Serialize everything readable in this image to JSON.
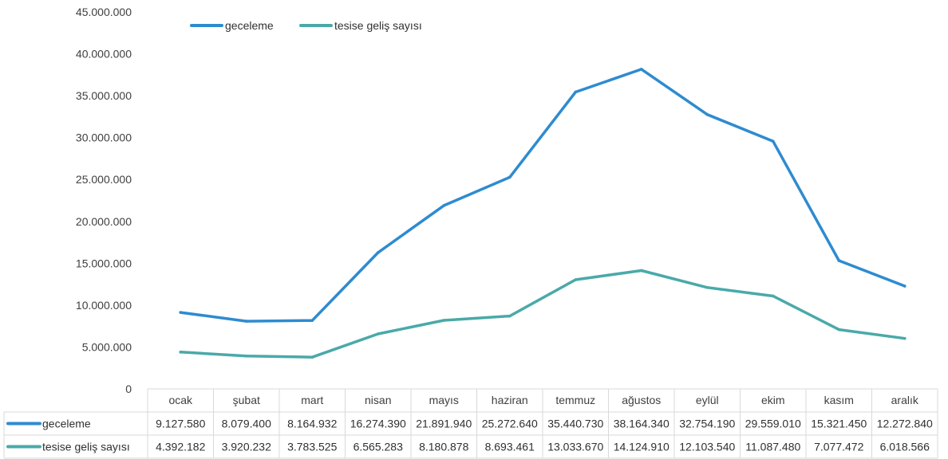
{
  "chart_data": {
    "type": "line",
    "title": "",
    "xlabel": "",
    "ylabel": "",
    "categories": [
      "ocak",
      "şubat",
      "mart",
      "nisan",
      "mayıs",
      "haziran",
      "temmuz",
      "ağustos",
      "eylül",
      "ekim",
      "kasım",
      "aralık"
    ],
    "series": [
      {
        "name": "geceleme",
        "color": "#2e8bd0",
        "values": [
          9127580,
          8079400,
          8164932,
          16274390,
          21891940,
          25272640,
          35440730,
          38164340,
          32754190,
          29559010,
          15321450,
          12272840
        ],
        "labels": [
          "9.127.580",
          "8.079.400",
          "8.164.932",
          "16.274.390",
          "21.891.940",
          "25.272.640",
          "35.440.730",
          "38.164.340",
          "32.754.190",
          "29.559.010",
          "15.321.450",
          "12.272.840"
        ]
      },
      {
        "name": "tesise geliş sayısı",
        "color": "#4aa9a9",
        "values": [
          4392182,
          3920232,
          3783525,
          6565283,
          8180878,
          8693461,
          13033670,
          14124910,
          12103540,
          11087480,
          7077472,
          6018566
        ],
        "labels": [
          "4.392.182",
          "3.920.232",
          "3.783.525",
          "6.565.283",
          "8.180.878",
          "8.693.461",
          "13.033.670",
          "14.124.910",
          "12.103.540",
          "11.087.480",
          "7.077.472",
          "6.018.566"
        ]
      }
    ],
    "ylim": [
      0,
      45000000
    ],
    "yticks": [
      "0",
      "5.000.000",
      "10.000.000",
      "15.000.000",
      "20.000.000",
      "25.000.000",
      "30.000.000",
      "35.000.000",
      "40.000.000",
      "45.000.000"
    ],
    "grid": false,
    "legend": "top-left",
    "data_table": true
  }
}
